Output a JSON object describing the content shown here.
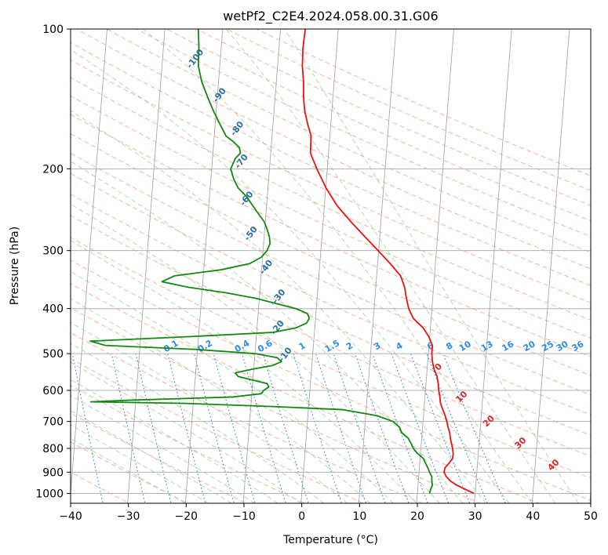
{
  "chart_data": {
    "type": "line",
    "title": "wetPf2_C2E4.2024.058.00.31.G06",
    "xlabel": "Temperature (°C)",
    "ylabel": "Pressure (hPa)",
    "xlim": [
      -40,
      50
    ],
    "ylim": [
      1050,
      100
    ],
    "y_scale": "log",
    "x_ticks": [
      "−40",
      "−30",
      "−20",
      "−10",
      "0",
      "10",
      "20",
      "30",
      "40",
      "50"
    ],
    "y_ticks": [
      {
        "p": 100,
        "label": "100"
      },
      {
        "p": 200,
        "label": "200"
      },
      {
        "p": 300,
        "label": "300"
      },
      {
        "p": 400,
        "label": "400"
      },
      {
        "p": 500,
        "label": "500"
      },
      {
        "p": 600,
        "label": "600"
      },
      {
        "p": 700,
        "label": "700"
      },
      {
        "p": 800,
        "label": "800"
      },
      {
        "p": 900,
        "label": "900"
      },
      {
        "p": 1000,
        "label": "1000"
      }
    ],
    "grid": true,
    "series": [
      {
        "color": "#ee1111",
        "points": [
          [
            1000,
            29.8
          ],
          [
            980,
            28.3
          ],
          [
            960,
            26.8
          ],
          [
            940,
            25.7
          ],
          [
            920,
            25.0
          ],
          [
            900,
            24.6
          ],
          [
            880,
            24.8
          ],
          [
            860,
            25.5
          ],
          [
            840,
            26.1
          ],
          [
            820,
            26.2
          ],
          [
            800,
            26.1
          ],
          [
            780,
            25.9
          ],
          [
            760,
            25.7
          ],
          [
            740,
            25.6
          ],
          [
            720,
            25.3
          ],
          [
            700,
            25.1
          ],
          [
            680,
            24.8
          ],
          [
            660,
            24.4
          ],
          [
            640,
            24.0
          ],
          [
            620,
            23.9
          ],
          [
            600,
            23.7
          ],
          [
            580,
            23.6
          ],
          [
            560,
            23.4
          ],
          [
            540,
            22.9
          ],
          [
            520,
            22.6
          ],
          [
            500,
            22.5
          ],
          [
            480,
            22.6
          ],
          [
            460,
            22.0
          ],
          [
            440,
            21.0
          ],
          [
            420,
            19.3
          ],
          [
            400,
            18.5
          ],
          [
            380,
            18.1
          ],
          [
            360,
            17.8
          ],
          [
            340,
            17.1
          ],
          [
            320,
            15.3
          ],
          [
            300,
            13.2
          ],
          [
            280,
            10.9
          ],
          [
            260,
            8.5
          ],
          [
            240,
            6.1
          ],
          [
            220,
            4.2
          ],
          [
            200,
            2.6
          ],
          [
            185,
            1.5
          ],
          [
            170,
            1.6
          ],
          [
            160,
            1.0
          ],
          [
            150,
            0.5
          ],
          [
            140,
            0.3
          ],
          [
            130,
            0.3
          ],
          [
            120,
            0.1
          ],
          [
            110,
            0.2
          ],
          [
            100,
            0.6
          ]
        ]
      },
      {
        "color": "#118811",
        "points": [
          [
            1000,
            22.1
          ],
          [
            980,
            22.3
          ],
          [
            960,
            22.6
          ],
          [
            940,
            22.5
          ],
          [
            920,
            22.5
          ],
          [
            900,
            22.1
          ],
          [
            880,
            21.8
          ],
          [
            860,
            21.4
          ],
          [
            840,
            21.0
          ],
          [
            820,
            20.0
          ],
          [
            800,
            19.3
          ],
          [
            780,
            18.9
          ],
          [
            760,
            18.4
          ],
          [
            740,
            17.3
          ],
          [
            720,
            16.9
          ],
          [
            700,
            15.8
          ],
          [
            680,
            13.0
          ],
          [
            660,
            7.0
          ],
          [
            650,
            -5.0
          ],
          [
            640,
            -20.0
          ],
          [
            635,
            -36.5
          ],
          [
            630,
            -30.0
          ],
          [
            620,
            -12.0
          ],
          [
            610,
            -7.0
          ],
          [
            600,
            -6.6
          ],
          [
            590,
            -5.7
          ],
          [
            580,
            -6.0
          ],
          [
            570,
            -8.5
          ],
          [
            560,
            -11.0
          ],
          [
            550,
            -11.5
          ],
          [
            540,
            -8.5
          ],
          [
            530,
            -5.0
          ],
          [
            520,
            -3.5
          ],
          [
            510,
            -4.3
          ],
          [
            500,
            -8.0
          ],
          [
            490,
            -18.0
          ],
          [
            480,
            -34.0
          ],
          [
            470,
            -36.6
          ],
          [
            460,
            -20.0
          ],
          [
            450,
            -5.0
          ],
          [
            440,
            -1.0
          ],
          [
            430,
            0.8
          ],
          [
            420,
            1.3
          ],
          [
            410,
            1.0
          ],
          [
            400,
            -1.0
          ],
          [
            390,
            -4.5
          ],
          [
            380,
            -8.0
          ],
          [
            370,
            -13.0
          ],
          [
            360,
            -19.5
          ],
          [
            350,
            -24.2
          ],
          [
            340,
            -22.0
          ],
          [
            330,
            -14.0
          ],
          [
            320,
            -9.0
          ],
          [
            310,
            -7.0
          ],
          [
            300,
            -6.0
          ],
          [
            290,
            -5.5
          ],
          [
            280,
            -5.6
          ],
          [
            270,
            -6.0
          ],
          [
            260,
            -6.5
          ],
          [
            250,
            -7.5
          ],
          [
            240,
            -8.5
          ],
          [
            230,
            -9.5
          ],
          [
            220,
            -11.0
          ],
          [
            210,
            -11.8
          ],
          [
            200,
            -12.3
          ],
          [
            190,
            -11.5
          ],
          [
            185,
            -10.6
          ],
          [
            180,
            -10.8
          ],
          [
            175,
            -11.8
          ],
          [
            170,
            -13.1
          ],
          [
            160,
            -14.2
          ],
          [
            150,
            -15.3
          ],
          [
            140,
            -16.3
          ],
          [
            130,
            -17.3
          ],
          [
            120,
            -17.9
          ],
          [
            110,
            -17.8
          ],
          [
            100,
            -17.9
          ]
        ]
      }
    ],
    "dry_adiabat_labels": [
      "-100",
      "-90",
      "-80",
      "-70",
      "-60",
      "-50",
      "-40",
      "-30",
      "-20",
      "-10"
    ],
    "dry_adiabat_label_positions": [
      {
        "t": -24.3,
        "p": 116
      },
      {
        "t": -19.6,
        "p": 139
      },
      {
        "t": -16.1,
        "p": 164
      },
      {
        "t": -14.9,
        "p": 193
      },
      {
        "t": -13.5,
        "p": 232
      },
      {
        "t": -12.3,
        "p": 276
      },
      {
        "t": -9.2,
        "p": 326
      },
      {
        "t": -6.6,
        "p": 377
      },
      {
        "t": -6.4,
        "p": 440
      },
      {
        "t": -4.7,
        "p": 503
      }
    ],
    "mixing_ratio_labels": [
      "0.1",
      "0.2",
      "0.4",
      "0.6",
      "1",
      "1.5",
      "2",
      "3",
      "4",
      "6",
      "8",
      "10",
      "13",
      "16",
      "20",
      "25",
      "30",
      "36"
    ],
    "mixing_ratio_label_positions": [
      {
        "t": -22.6
      },
      {
        "t": -16.7
      },
      {
        "t": -10.3
      },
      {
        "t": -6.3
      },
      {
        "t": 0.1
      },
      {
        "t": 5.3
      },
      {
        "t": 8.3
      },
      {
        "t": 13.1
      },
      {
        "t": 16.9
      },
      {
        "t": 22.3
      },
      {
        "t": 25.6
      },
      {
        "t": 28.3
      },
      {
        "t": 32.1
      },
      {
        "t": 35.7
      },
      {
        "t": 39.4
      },
      {
        "t": 42.6
      },
      {
        "t": 45.1
      },
      {
        "t": 47.8
      }
    ],
    "moist_adiabat_labels": [
      "0",
      "10",
      "20",
      "30",
      "40"
    ],
    "moist_adiabat_label_positions": [
      {
        "t": 23.7,
        "p": 535
      },
      {
        "t": 27.7,
        "p": 620
      },
      {
        "t": 32.4,
        "p": 700
      },
      {
        "t": 37.9,
        "p": 780
      },
      {
        "t": 43.6,
        "p": 870
      }
    ]
  },
  "colors": {
    "grid": "#b0b0b0",
    "skew_isotherm": "#a8a8a8",
    "dry_adiabat": "#f4a582",
    "moist_adiabat": "#9ccf9c",
    "mixing_ratio": "#3a8fd9",
    "dry_label": "#2a6faa",
    "mix_label": "#2b8de8",
    "moist_label": "#d62728"
  }
}
